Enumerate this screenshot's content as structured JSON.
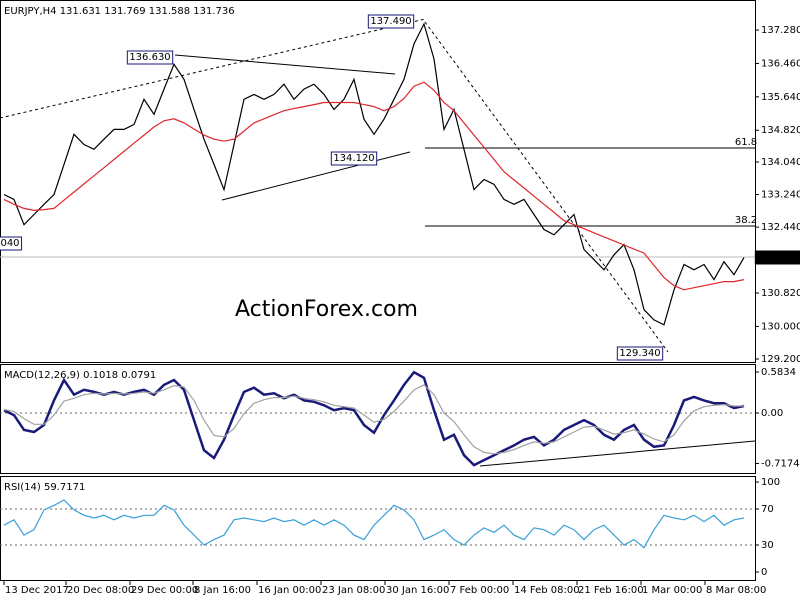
{
  "chart_data": [
    {
      "type": "line",
      "title": "EURJPY,H4  131.631 131.769 131.588 131.736",
      "x": [
        0,
        1,
        2,
        3,
        4,
        5,
        6,
        7,
        8,
        9,
        10,
        11,
        12,
        13,
        14,
        15,
        16,
        17,
        18,
        19,
        20,
        21,
        22,
        23,
        24,
        25,
        26,
        27,
        28,
        29,
        30,
        31,
        32,
        33,
        34,
        35,
        36,
        37,
        38,
        39,
        40,
        41,
        42,
        43,
        44,
        45,
        46,
        47,
        48,
        49,
        50,
        51,
        52,
        53,
        54,
        55,
        56,
        57,
        58,
        59,
        60,
        61,
        62,
        63,
        64,
        65,
        66,
        67,
        68,
        69,
        70,
        71,
        72,
        73,
        74
      ],
      "xlim": [
        -0.4,
        75.1
      ],
      "ylim": [
        129.126,
        137.994
      ],
      "yticks": [
        {
          "value": 137.28,
          "label": "137.280"
        },
        {
          "value": 136.46,
          "label": "136.460"
        },
        {
          "value": 135.64,
          "label": "135.640"
        },
        {
          "value": 134.82,
          "label": "134.820"
        },
        {
          "value": 134.04,
          "label": "134.040"
        },
        {
          "value": 133.24,
          "label": "133.240"
        },
        {
          "value": 132.44,
          "label": "132.440"
        },
        {
          "value": 130.82,
          "label": "130.820"
        },
        {
          "value": 130.0,
          "label": "130.000"
        },
        {
          "value": 129.2,
          "label": "129.200"
        }
      ],
      "series": [
        {
          "name": "EURJPY",
          "color": "#000000",
          "values": [
            133.24,
            133.12,
            132.5,
            132.75,
            133.0,
            133.24,
            133.98,
            134.72,
            134.47,
            134.35,
            134.6,
            134.84,
            134.84,
            134.96,
            135.58,
            135.21,
            135.83,
            136.44,
            136.07,
            135.33,
            134.6,
            133.98,
            133.36,
            134.47,
            135.58,
            135.7,
            135.58,
            135.7,
            135.95,
            135.58,
            135.83,
            135.95,
            135.7,
            135.33,
            135.58,
            136.07,
            135.09,
            134.72,
            135.09,
            135.58,
            136.07,
            136.94,
            137.43,
            136.57,
            134.84,
            135.33,
            134.35,
            133.36,
            133.61,
            133.49,
            133.12,
            133.0,
            133.12,
            132.75,
            132.38,
            132.25,
            132.5,
            132.75,
            131.89,
            131.64,
            131.39,
            131.76,
            132.01,
            131.39,
            130.41,
            130.16,
            130.04,
            130.9,
            131.52,
            131.39,
            131.52,
            131.15,
            131.59,
            131.27,
            131.69
          ]
        },
        {
          "name": "MA",
          "color": "#e0262a",
          "values": [
            133.12,
            133.0,
            132.9,
            132.85,
            132.87,
            132.9,
            133.1,
            133.3,
            133.5,
            133.7,
            133.9,
            134.1,
            134.3,
            134.5,
            134.7,
            134.9,
            135.05,
            135.1,
            135.0,
            134.85,
            134.7,
            134.6,
            134.55,
            134.6,
            134.8,
            135.0,
            135.1,
            135.2,
            135.3,
            135.35,
            135.4,
            135.45,
            135.5,
            135.5,
            135.5,
            135.5,
            135.45,
            135.4,
            135.3,
            135.4,
            135.6,
            135.9,
            136.0,
            135.8,
            135.5,
            135.3,
            135.0,
            134.7,
            134.4,
            134.1,
            133.8,
            133.6,
            133.4,
            133.2,
            133.0,
            132.8,
            132.6,
            132.5,
            132.4,
            132.3,
            132.2,
            132.1,
            132.0,
            131.9,
            131.8,
            131.5,
            131.2,
            131.0,
            130.9,
            130.95,
            131.0,
            131.05,
            131.1,
            131.1,
            131.15
          ]
        }
      ],
      "annotations": [
        "137.490",
        "136.630",
        "134.120",
        "129.340",
        "040",
        "61.8",
        "38.2",
        "131.736"
      ],
      "watermark": "ActionForex.com"
    },
    {
      "type": "line",
      "title": "MACD(12,26,9) 0.1018 0.0791",
      "x": [
        0,
        1,
        2,
        3,
        4,
        5,
        6,
        7,
        8,
        9,
        10,
        11,
        12,
        13,
        14,
        15,
        16,
        17,
        18,
        19,
        20,
        21,
        22,
        23,
        24,
        25,
        26,
        27,
        28,
        29,
        30,
        31,
        32,
        33,
        34,
        35,
        36,
        37,
        38,
        39,
        40,
        41,
        42,
        43,
        44,
        45,
        46,
        47,
        48,
        49,
        50,
        51,
        52,
        53,
        54,
        55,
        56,
        57,
        58,
        59,
        60,
        61,
        62,
        63,
        64,
        65,
        66,
        67,
        68,
        69,
        70,
        71,
        72,
        73,
        74
      ],
      "xlim": [
        -0.4,
        75.1
      ],
      "ylim": [
        -0.853,
        0.683
      ],
      "yticks": [
        0.5834,
        {
          "value": 0,
          "label": "0.00"
        },
        -0.7174
      ],
      "levels": [
        0
      ],
      "series": [
        {
          "name": "MACD",
          "color": "#1a1a7a",
          "values": [
            0.04,
            -0.03,
            -0.24,
            -0.27,
            -0.17,
            0.18,
            0.47,
            0.26,
            0.33,
            0.3,
            0.26,
            0.3,
            0.26,
            0.3,
            0.33,
            0.26,
            0.4,
            0.47,
            0.33,
            -0.1,
            -0.53,
            -0.64,
            -0.38,
            -0.03,
            0.3,
            0.36,
            0.26,
            0.28,
            0.21,
            0.26,
            0.18,
            0.16,
            0.11,
            0.04,
            0.07,
            0.04,
            -0.17,
            -0.28,
            -0.03,
            0.18,
            0.4,
            0.58,
            0.5,
            0.04,
            -0.38,
            -0.31,
            -0.6,
            -0.74,
            -0.67,
            -0.6,
            -0.53,
            -0.46,
            -0.38,
            -0.34,
            -0.46,
            -0.38,
            -0.24,
            -0.17,
            -0.1,
            -0.17,
            -0.31,
            -0.38,
            -0.24,
            -0.17,
            -0.38,
            -0.48,
            -0.46,
            -0.17,
            0.18,
            0.23,
            0.18,
            0.14,
            0.14,
            0.07,
            0.1
          ]
        },
        {
          "name": "Signal",
          "color": "#a0a0a0",
          "values": [
            0.05,
            0.02,
            -0.08,
            -0.16,
            -0.16,
            -0.03,
            0.17,
            0.21,
            0.26,
            0.28,
            0.27,
            0.28,
            0.27,
            0.28,
            0.3,
            0.28,
            0.33,
            0.39,
            0.37,
            0.18,
            -0.1,
            -0.32,
            -0.34,
            -0.22,
            -0.01,
            0.14,
            0.19,
            0.22,
            0.22,
            0.24,
            0.21,
            0.19,
            0.16,
            0.11,
            0.09,
            0.07,
            -0.03,
            -0.13,
            -0.09,
            0.02,
            0.17,
            0.33,
            0.4,
            0.26,
            0.0,
            -0.12,
            -0.31,
            -0.48,
            -0.56,
            -0.58,
            -0.56,
            -0.52,
            -0.46,
            -0.41,
            -0.43,
            -0.41,
            -0.34,
            -0.27,
            -0.2,
            -0.19,
            -0.24,
            -0.3,
            -0.28,
            -0.24,
            -0.3,
            -0.37,
            -0.41,
            -0.31,
            -0.11,
            0.03,
            0.09,
            0.11,
            0.12,
            0.1,
            0.1
          ]
        }
      ]
    },
    {
      "type": "line",
      "title": "RSI(14) 59.7171",
      "x": [
        0,
        1,
        2,
        3,
        4,
        5,
        6,
        7,
        8,
        9,
        10,
        11,
        12,
        13,
        14,
        15,
        16,
        17,
        18,
        19,
        20,
        21,
        22,
        23,
        24,
        25,
        26,
        27,
        28,
        29,
        30,
        31,
        32,
        33,
        34,
        35,
        36,
        37,
        38,
        39,
        40,
        41,
        42,
        43,
        44,
        45,
        46,
        47,
        48,
        49,
        50,
        51,
        52,
        53,
        54,
        55,
        56,
        57,
        58,
        59,
        60,
        61,
        62,
        63,
        64,
        65,
        66,
        67,
        68,
        69,
        70,
        71,
        72,
        73,
        74
      ],
      "xlim": [
        -0.4,
        75.1
      ],
      "ylim": [
        -8.9,
        105.6
      ],
      "yticks": [
        100,
        70,
        30,
        0
      ],
      "levels": [
        70,
        30
      ],
      "xticks": [
        {
          "value": 0,
          "label": "13 Dec 2017"
        },
        {
          "value": 6.2,
          "label": "20 Dec 08:00"
        },
        {
          "value": 12.6,
          "label": "29 Dec 00:00"
        },
        {
          "value": 18.9,
          "label": "8 Jan 16:00"
        },
        {
          "value": 25.3,
          "label": "16 Jan 00:00"
        },
        {
          "value": 31.7,
          "label": "23 Jan 08:00"
        },
        {
          "value": 38.1,
          "label": "30 Jan 16:00"
        },
        {
          "value": 44.5,
          "label": "7 Feb 00:00"
        },
        {
          "value": 50.9,
          "label": "14 Feb 08:00"
        },
        {
          "value": 57.3,
          "label": "21 Feb 16:00"
        },
        {
          "value": 63.7,
          "label": "1 Mar 00:00"
        },
        {
          "value": 70.1,
          "label": "8 Mar 08:00"
        }
      ],
      "series": [
        {
          "name": "RSI",
          "color": "#3aa0d8",
          "values": [
            52,
            58,
            41,
            47,
            69,
            74,
            80,
            69,
            63,
            60,
            63,
            58,
            63,
            60,
            63,
            63,
            74,
            69,
            52,
            41,
            30,
            36,
            41,
            58,
            60,
            58,
            56,
            60,
            56,
            58,
            52,
            58,
            52,
            58,
            52,
            41,
            36,
            52,
            63,
            74,
            69,
            58,
            36,
            41,
            47,
            36,
            30,
            41,
            49,
            44,
            52,
            41,
            36,
            49,
            47,
            41,
            52,
            47,
            36,
            47,
            52,
            41,
            30,
            36,
            27,
            47,
            63,
            60,
            58,
            63,
            56,
            63,
            52,
            58,
            60
          ]
        }
      ]
    }
  ]
}
